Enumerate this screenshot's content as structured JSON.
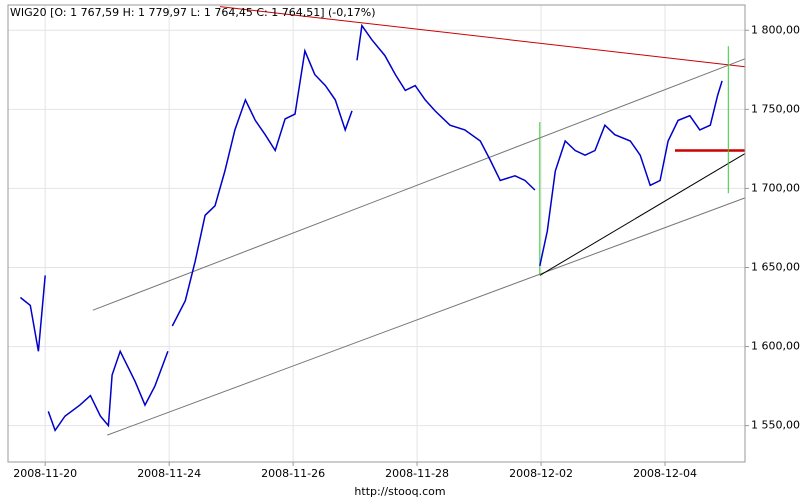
{
  "chart_data": {
    "type": "line",
    "title": "WIG20 [O: 1 767,59  H: 1 779,97  L: 1 764,45  C: 1 764,51] (-0,17%)",
    "footer": "http://stooq.com",
    "grid": true,
    "xlim": [
      -0.6,
      11.29
    ],
    "xticks": [
      {
        "value": 0,
        "label": "2008-11-20"
      },
      {
        "value": 2,
        "label": "2008-11-24"
      },
      {
        "value": 4,
        "label": "2008-11-26"
      },
      {
        "value": 6,
        "label": "2008-11-28"
      },
      {
        "value": 8,
        "label": "2008-12-02"
      },
      {
        "value": 10,
        "label": "2008-12-04"
      }
    ],
    "ylim": [
      1527,
      1816
    ],
    "yticks": [
      {
        "value": 1550,
        "label": "1 550,00"
      },
      {
        "value": 1600,
        "label": "1 600,00"
      },
      {
        "value": 1650,
        "label": "1 650,00"
      },
      {
        "value": 1700,
        "label": "1 700,00"
      },
      {
        "value": 1750,
        "label": "1 750,00"
      },
      {
        "value": 1800,
        "label": "1 800,00"
      }
    ],
    "series": [
      {
        "color": "#0000cc",
        "x": [
          -0.4,
          -0.24,
          -0.11,
          0,
          0.03,
          0.05,
          0.16,
          0.32,
          0.56,
          0.73,
          0.89,
          1.02,
          1.08,
          1.21,
          1.45,
          1.61,
          1.77,
          1.98,
          2.02,
          2.05,
          2.26,
          2.42,
          2.58,
          2.74,
          2.9,
          3.06,
          3.23,
          3.39,
          3.55,
          3.71,
          3.87,
          4.03,
          4.19,
          4.35,
          4.52,
          4.68,
          4.84,
          4.95,
          4.99,
          5.03,
          5.11,
          5.27,
          5.48,
          5.65,
          5.81,
          5.97,
          6.13,
          6.29,
          6.53,
          6.77,
          7.02,
          7.18,
          7.34,
          7.58,
          7.74,
          7.9,
          7.94,
          7.98,
          8.1,
          8.23,
          8.39,
          8.55,
          8.71,
          8.87,
          9.03,
          9.19,
          9.44,
          9.6,
          9.76,
          9.92,
          10.05,
          10.21,
          10.4,
          10.56,
          10.73,
          10.85,
          10.92
        ],
        "values": [
          1631,
          1626,
          1597,
          1645,
          null,
          1559,
          1547,
          1556,
          1563,
          1569,
          1556,
          1550,
          1582,
          1597,
          1578,
          1563,
          1575,
          1597,
          null,
          1613,
          1629,
          1654,
          1683,
          1689,
          1711,
          1737,
          1756,
          1743,
          1734,
          1724,
          1744,
          1747,
          1787,
          1772,
          1765,
          1756,
          1737,
          1749,
          null,
          1781,
          1803,
          1794,
          1784,
          1772,
          1762,
          1765,
          1756,
          1749,
          1740,
          1737,
          1730,
          1718,
          1705,
          1708,
          1705,
          1699,
          null,
          1651,
          1673,
          1711,
          1730,
          1724,
          1721,
          1724,
          1740,
          1734,
          1730,
          1721,
          1702,
          1705,
          1730,
          1743,
          1746,
          1737,
          1740,
          1759,
          1768
        ]
      }
    ],
    "lines": [
      {
        "color": "#cc0000",
        "x": [
          2.82,
          11.29
        ],
        "values": [
          1815,
          1777
        ]
      },
      {
        "color": "#777777",
        "x": [
          0.77,
          11.29
        ],
        "values": [
          1623,
          1782
        ]
      },
      {
        "color": "#777777",
        "x": [
          1.0,
          11.29
        ],
        "values": [
          1544,
          1694
        ]
      },
      {
        "color": "#000000",
        "x": [
          7.98,
          11.29
        ],
        "values": [
          1645,
          1722
        ]
      },
      {
        "color": "#cc0000",
        "x": [
          10.16,
          11.29
        ],
        "values": [
          1724,
          1724
        ]
      },
      {
        "color": "#33cc33",
        "x": [
          7.98,
          7.98
        ],
        "values": [
          1742,
          1645
        ]
      },
      {
        "color": "#33cc33",
        "x": [
          11.02,
          11.02
        ],
        "values": [
          1790,
          1697
        ]
      }
    ]
  }
}
